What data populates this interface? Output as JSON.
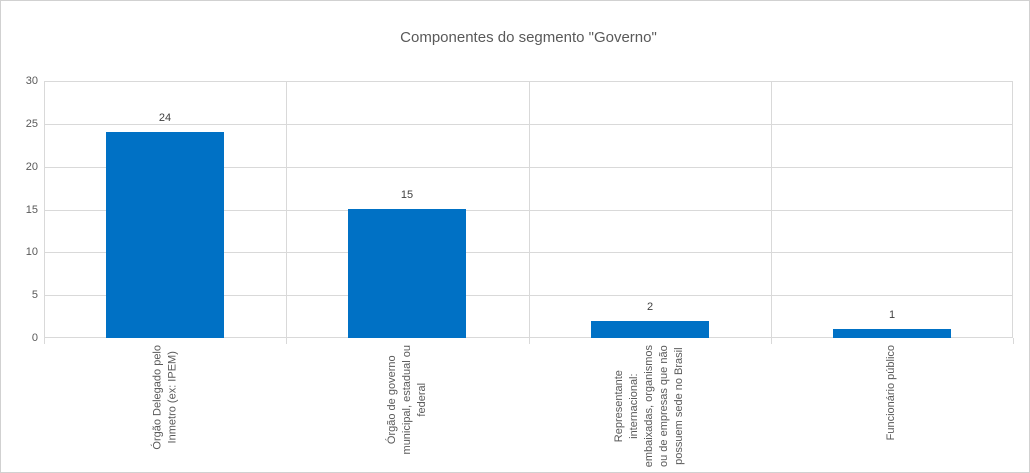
{
  "chart_data": {
    "type": "bar",
    "title": "Componentes do segmento \"Governo\"",
    "categories": [
      "Órgão Delegado pelo Inmetro (ex: IPEM)",
      "Órgão de governo municipal, estadual ou federal",
      "Representante internacional: embaixadas, organismos ou de empresas que não possuem sede no Brasil",
      "Funcionário público"
    ],
    "category_label_lines": [
      [
        "Órgão Delegado pelo",
        "Inmetro (ex: IPEM)"
      ],
      [
        "Órgão de governo",
        "municipal, estadual ou",
        "federal"
      ],
      [
        "Representante",
        "internacional:",
        "embaixadas, organismos",
        "ou de empresas que não",
        "possuem sede no Brasil"
      ],
      [
        "Funcionário público"
      ]
    ],
    "values": [
      24,
      15,
      2,
      1
    ],
    "value_labels": [
      "24",
      "15",
      "2",
      "1"
    ],
    "xlabel": "",
    "ylabel": "",
    "ylim": [
      0,
      30
    ],
    "y_ticks": [
      0,
      5,
      10,
      15,
      20,
      25,
      30
    ],
    "grid": true,
    "legend": false,
    "x_label_rotation_deg": 90,
    "colors": {
      "bar": "#0071C5",
      "gridline": "#D9D9D9",
      "plot_border": "#D9D9D9",
      "canvas_border": "#D1D1D1",
      "title_text": "#595959",
      "axis_text": "#595959",
      "value_label_text": "#404040",
      "background": "#FFFFFF"
    }
  }
}
